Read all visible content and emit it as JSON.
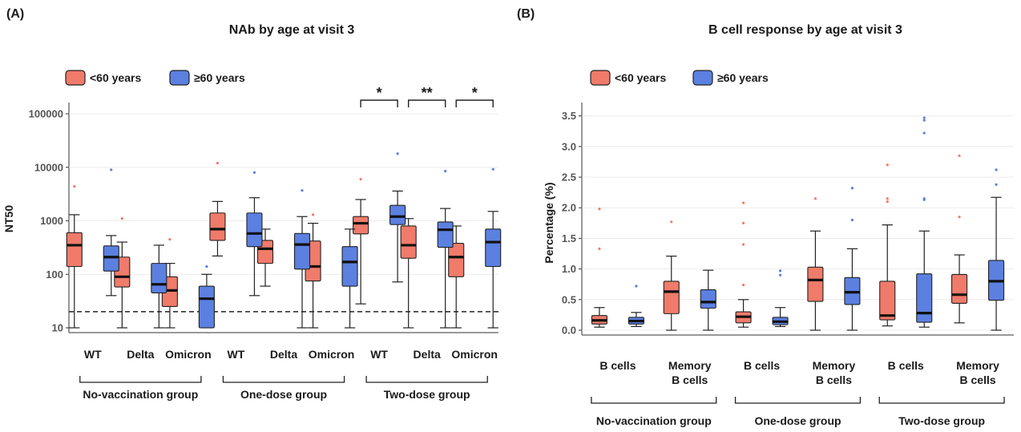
{
  "chart_data": [
    {
      "panel_label": "(A)",
      "type": "box",
      "title": "NAb by age at visit 3",
      "ylabel": "NT50",
      "yscale": "log",
      "ylim": [
        10,
        100000
      ],
      "yticks": [
        10,
        100,
        1000,
        10000,
        100000
      ],
      "ytick_labels": [
        "10",
        "100",
        "1000",
        "10000",
        "100000"
      ],
      "reference_line": 20,
      "legend": [
        "<60 years",
        "≥60 years"
      ],
      "legend_position": "top-left",
      "series_colors": [
        "#f07b6a",
        "#5b80e0"
      ],
      "categories": [
        "WT",
        "Delta",
        "Omicron",
        "WT",
        "Delta",
        "Omicron",
        "WT",
        "Delta",
        "Omicron"
      ],
      "groups": [
        {
          "label": "No-vaccination group",
          "categories": [
            0,
            1,
            2
          ]
        },
        {
          "label": "One-dose group",
          "categories": [
            3,
            4,
            5
          ]
        },
        {
          "label": "Two-dose group",
          "categories": [
            6,
            7,
            8
          ]
        }
      ],
      "series": [
        {
          "name": "<60 years",
          "boxes": [
            {
              "min": 10,
              "q1": 140,
              "median": 350,
              "q3": 600,
              "max": 1300,
              "outliers": [
                4400
              ]
            },
            {
              "min": 10,
              "q1": 58,
              "median": 90,
              "q3": 210,
              "max": 400,
              "outliers": [
                1100
              ]
            },
            {
              "min": 10,
              "q1": 25,
              "median": 50,
              "q3": 90,
              "max": 160,
              "outliers": [
                450
              ]
            },
            {
              "min": 220,
              "q1": 430,
              "median": 700,
              "q3": 1400,
              "max": 2300,
              "outliers": [
                12000
              ]
            },
            {
              "min": 60,
              "q1": 160,
              "median": 300,
              "q3": 430,
              "max": 700,
              "outliers": []
            },
            {
              "min": 10,
              "q1": 75,
              "median": 140,
              "q3": 420,
              "max": 900,
              "outliers": [
                1300
              ]
            },
            {
              "min": 28,
              "q1": 570,
              "median": 900,
              "q3": 1200,
              "max": 2500,
              "outliers": [
                6000
              ]
            },
            {
              "min": 10,
              "q1": 200,
              "median": 350,
              "q3": 800,
              "max": 1100,
              "outliers": []
            },
            {
              "min": 10,
              "q1": 90,
              "median": 210,
              "q3": 380,
              "max": 800,
              "outliers": []
            }
          ]
        },
        {
          "name": "≥60 years",
          "boxes": [
            {
              "min": 40,
              "q1": 115,
              "median": 210,
              "q3": 340,
              "max": 530,
              "outliers": [
                9000
              ]
            },
            {
              "min": 10,
              "q1": 45,
              "median": 65,
              "q3": 160,
              "max": 350,
              "outliers": []
            },
            {
              "min": 10,
              "q1": 10,
              "median": 35,
              "q3": 60,
              "max": 100,
              "outliers": [
                140
              ]
            },
            {
              "min": 40,
              "q1": 330,
              "median": 580,
              "q3": 1400,
              "max": 2700,
              "outliers": [
                8000
              ]
            },
            {
              "min": 10,
              "q1": 125,
              "median": 360,
              "q3": 580,
              "max": 1200,
              "outliers": [
                3700
              ]
            },
            {
              "min": 10,
              "q1": 60,
              "median": 170,
              "q3": 330,
              "max": 700,
              "outliers": []
            },
            {
              "min": 72,
              "q1": 850,
              "median": 1200,
              "q3": 1950,
              "max": 3600,
              "outliers": [
                18000
              ]
            },
            {
              "min": 10,
              "q1": 320,
              "median": 680,
              "q3": 950,
              "max": 1700,
              "outliers": [
                8500
              ]
            },
            {
              "min": 10,
              "q1": 140,
              "median": 400,
              "q3": 700,
              "max": 1500,
              "outliers": [
                9200
              ]
            }
          ]
        }
      ],
      "significance": [
        {
          "category": 6,
          "label": "*"
        },
        {
          "category": 7,
          "label": "**"
        },
        {
          "category": 8,
          "label": "*"
        }
      ]
    },
    {
      "panel_label": "(B)",
      "type": "box",
      "title": "B cell response by age at visit 3",
      "ylabel": "Percentage (%)",
      "ylim": [
        0,
        3.6
      ],
      "yticks": [
        0.0,
        0.5,
        1.0,
        1.5,
        2.0,
        2.5,
        3.0,
        3.5
      ],
      "ytick_labels": [
        "0.0",
        "0.5",
        "1.0",
        "1.5",
        "2.0",
        "2.5",
        "3.0",
        "3.5"
      ],
      "legend": [
        "<60 years",
        "≥60 years"
      ],
      "legend_position": "top-left",
      "series_colors": [
        "#f07b6a",
        "#5b80e0"
      ],
      "categories": [
        [
          "B cells"
        ],
        [
          "Memory",
          "B cells"
        ],
        [
          "B cells"
        ],
        [
          "Memory",
          "B cells"
        ],
        [
          "B cells"
        ],
        [
          "Memory",
          "B cells"
        ]
      ],
      "groups": [
        {
          "label": "No-vaccination group",
          "categories": [
            0,
            1
          ]
        },
        {
          "label": "One-dose group",
          "categories": [
            2,
            3
          ]
        },
        {
          "label": "Two-dose group",
          "categories": [
            4,
            5
          ]
        }
      ],
      "series": [
        {
          "name": "<60 years",
          "boxes": [
            {
              "min": 0.05,
              "q1": 0.1,
              "median": 0.16,
              "q3": 0.24,
              "max": 0.37,
              "outliers": [
                1.33,
                1.98
              ]
            },
            {
              "min": 0.0,
              "q1": 0.27,
              "median": 0.63,
              "q3": 0.8,
              "max": 1.21,
              "outliers": [
                1.77
              ]
            },
            {
              "min": 0.05,
              "q1": 0.12,
              "median": 0.22,
              "q3": 0.3,
              "max": 0.5,
              "outliers": [
                0.74,
                1.4,
                1.75,
                2.08
              ]
            },
            {
              "min": 0.0,
              "q1": 0.47,
              "median": 0.82,
              "q3": 1.03,
              "max": 1.62,
              "outliers": [
                2.15
              ]
            },
            {
              "min": 0.07,
              "q1": 0.17,
              "median": 0.24,
              "q3": 0.8,
              "max": 1.72,
              "outliers": [
                2.1,
                2.15,
                2.7
              ]
            },
            {
              "min": 0.12,
              "q1": 0.44,
              "median": 0.58,
              "q3": 0.91,
              "max": 1.23,
              "outliers": [
                1.85,
                2.85
              ]
            }
          ]
        },
        {
          "name": "≥60 years",
          "boxes": [
            {
              "min": 0.06,
              "q1": 0.1,
              "median": 0.15,
              "q3": 0.21,
              "max": 0.29,
              "outliers": [
                0.72
              ]
            },
            {
              "min": 0.0,
              "q1": 0.36,
              "median": 0.46,
              "q3": 0.66,
              "max": 0.98,
              "outliers": []
            },
            {
              "min": 0.06,
              "q1": 0.09,
              "median": 0.14,
              "q3": 0.21,
              "max": 0.37,
              "outliers": [
                0.9,
                0.97
              ]
            },
            {
              "min": 0.0,
              "q1": 0.42,
              "median": 0.62,
              "q3": 0.86,
              "max": 1.33,
              "outliers": [
                1.8,
                2.32
              ]
            },
            {
              "min": 0.05,
              "q1": 0.13,
              "median": 0.28,
              "q3": 0.92,
              "max": 1.62,
              "outliers": [
                2.13,
                2.15,
                3.22,
                3.43,
                3.47
              ]
            },
            {
              "min": 0.0,
              "q1": 0.49,
              "median": 0.8,
              "q3": 1.14,
              "max": 2.17,
              "outliers": [
                2.38,
                2.62
              ]
            }
          ]
        }
      ]
    }
  ]
}
